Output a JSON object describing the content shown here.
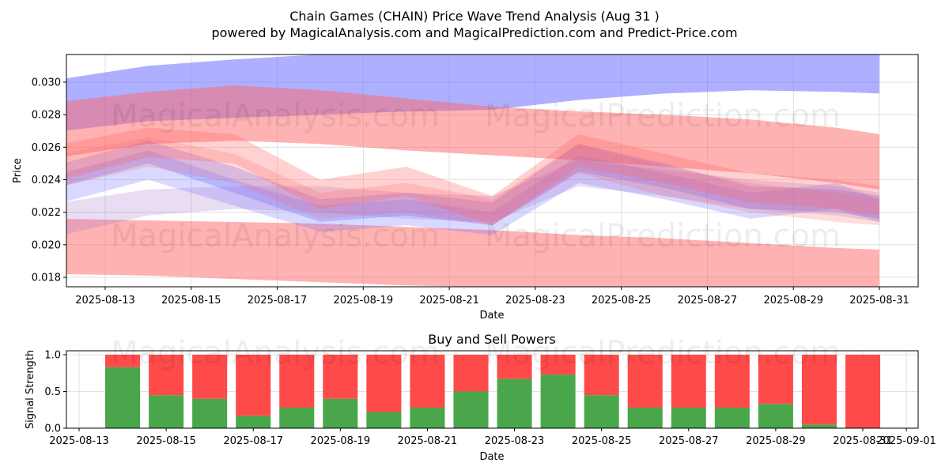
{
  "header": {
    "title": "Chain Games (CHAIN) Price Wave Trend Analysis (Aug 31 )",
    "subtitle": "powered by MagicalAnalysis.com and MagicalPrediction.com and Predict-Price.com"
  },
  "watermarks": {
    "analysis": "MagicalAnalysis.com",
    "prediction": "MagicalPrediction.com"
  },
  "colors": {
    "blue_band": "#6666ff",
    "red_band": "#ff6666",
    "buy": "#4aa64a",
    "sell": "#ff4a4a",
    "grid": "#d9d9d9"
  },
  "chart_data": [
    {
      "type": "area",
      "title": "",
      "xlabel": "Date",
      "ylabel": "Price",
      "xlim": [
        "2025-08-11",
        "2025-09-01"
      ],
      "ylim": [
        0.0174,
        0.0318
      ],
      "grid": true,
      "x_ticks": [
        "2025-08-13",
        "2025-08-15",
        "2025-08-17",
        "2025-08-19",
        "2025-08-21",
        "2025-08-23",
        "2025-08-25",
        "2025-08-27",
        "2025-08-29",
        "2025-08-31"
      ],
      "y_ticks": [
        "0.018",
        "0.020",
        "0.022",
        "0.024",
        "0.026",
        "0.028",
        "0.030"
      ],
      "bands": [
        {
          "name": "long-blue-upper",
          "color": "blue",
          "opacity": 0.52,
          "x": [
            "2025-08-12",
            "2025-08-14",
            "2025-08-16",
            "2025-08-18",
            "2025-08-20",
            "2025-08-22",
            "2025-08-24",
            "2025-08-26",
            "2025-08-28",
            "2025-08-30",
            "2025-08-31"
          ],
          "upper": [
            0.0302,
            0.031,
            0.0314,
            0.0317,
            0.0318,
            0.0318,
            0.0318,
            0.0318,
            0.0318,
            0.0318,
            0.0318
          ],
          "lower": [
            0.027,
            0.0276,
            0.0278,
            0.028,
            0.0282,
            0.0283,
            0.0289,
            0.0293,
            0.0295,
            0.0294,
            0.0293
          ]
        },
        {
          "name": "long-red-upper",
          "color": "red",
          "opacity": 0.5,
          "x": [
            "2025-08-12",
            "2025-08-14",
            "2025-08-16",
            "2025-08-18",
            "2025-08-20",
            "2025-08-22",
            "2025-08-24",
            "2025-08-26",
            "2025-08-28",
            "2025-08-30",
            "2025-08-31"
          ],
          "upper": [
            0.0288,
            0.0294,
            0.0298,
            0.0295,
            0.029,
            0.0285,
            0.0282,
            0.028,
            0.0277,
            0.0272,
            0.0268
          ],
          "lower": [
            0.0254,
            0.0262,
            0.0264,
            0.0262,
            0.0258,
            0.0255,
            0.0252,
            0.0248,
            0.0244,
            0.0238,
            0.0234
          ]
        },
        {
          "name": "long-red-lower",
          "color": "red",
          "opacity": 0.5,
          "x": [
            "2025-08-12",
            "2025-08-14",
            "2025-08-16",
            "2025-08-18",
            "2025-08-20",
            "2025-08-22",
            "2025-08-24",
            "2025-08-26",
            "2025-08-28",
            "2025-08-30",
            "2025-08-31"
          ],
          "upper": [
            0.0216,
            0.0215,
            0.0214,
            0.0213,
            0.0211,
            0.0209,
            0.0206,
            0.0204,
            0.0201,
            0.0198,
            0.0197
          ],
          "lower": [
            0.0182,
            0.0181,
            0.0179,
            0.0177,
            0.0175,
            0.0174,
            0.0174,
            0.0174,
            0.0174,
            0.0174,
            0.0174
          ]
        },
        {
          "name": "short-blue-a",
          "color": "blue",
          "opacity": 0.3,
          "x": [
            "2025-08-12",
            "2025-08-14",
            "2025-08-16",
            "2025-08-18",
            "2025-08-20",
            "2025-08-22",
            "2025-08-24",
            "2025-08-26",
            "2025-08-28",
            "2025-08-30",
            "2025-08-31"
          ],
          "upper": [
            0.025,
            0.0264,
            0.0248,
            0.0228,
            0.0232,
            0.0226,
            0.0262,
            0.025,
            0.0236,
            0.0234,
            0.023
          ],
          "lower": [
            0.0236,
            0.025,
            0.0232,
            0.0214,
            0.0218,
            0.0212,
            0.0245,
            0.0235,
            0.0222,
            0.022,
            0.0216
          ]
        },
        {
          "name": "short-blue-b",
          "color": "blue",
          "opacity": 0.25,
          "x": [
            "2025-08-12",
            "2025-08-14",
            "2025-08-16",
            "2025-08-18",
            "2025-08-20",
            "2025-08-22",
            "2025-08-24",
            "2025-08-26",
            "2025-08-28",
            "2025-08-30",
            "2025-08-31"
          ],
          "upper": [
            0.0244,
            0.0258,
            0.024,
            0.0224,
            0.0228,
            0.022,
            0.0255,
            0.0244,
            0.0232,
            0.0238,
            0.0228
          ],
          "lower": [
            0.0226,
            0.024,
            0.0224,
            0.0208,
            0.0212,
            0.0206,
            0.0238,
            0.0228,
            0.0216,
            0.0222,
            0.0214
          ]
        },
        {
          "name": "short-purple",
          "color": "purple",
          "opacity": 0.22,
          "x": [
            "2025-08-12",
            "2025-08-14",
            "2025-08-16",
            "2025-08-18",
            "2025-08-20",
            "2025-08-22",
            "2025-08-24",
            "2025-08-26",
            "2025-08-28",
            "2025-08-30",
            "2025-08-31"
          ],
          "upper": [
            0.0226,
            0.0234,
            0.0236,
            0.0236,
            0.0232,
            0.023,
            0.0252,
            0.0246,
            0.024,
            0.0236,
            0.0232
          ],
          "lower": [
            0.0206,
            0.0218,
            0.0222,
            0.022,
            0.0216,
            0.0214,
            0.0236,
            0.023,
            0.0222,
            0.0218,
            0.0214
          ]
        },
        {
          "name": "short-red-a",
          "color": "red",
          "opacity": 0.3,
          "x": [
            "2025-08-12",
            "2025-08-14",
            "2025-08-16",
            "2025-08-18",
            "2025-08-20",
            "2025-08-22",
            "2025-08-24",
            "2025-08-26",
            "2025-08-28",
            "2025-08-30",
            "2025-08-31"
          ],
          "upper": [
            0.0262,
            0.0272,
            0.0268,
            0.024,
            0.0248,
            0.023,
            0.0268,
            0.0256,
            0.0244,
            0.024,
            0.0236
          ],
          "lower": [
            0.024,
            0.0254,
            0.025,
            0.0222,
            0.023,
            0.0212,
            0.0248,
            0.0238,
            0.0226,
            0.0222,
            0.0218
          ]
        },
        {
          "name": "short-red-b",
          "color": "red",
          "opacity": 0.22,
          "x": [
            "2025-08-12",
            "2025-08-14",
            "2025-08-16",
            "2025-08-18",
            "2025-08-20",
            "2025-08-22",
            "2025-08-24",
            "2025-08-26",
            "2025-08-28",
            "2025-08-30",
            "2025-08-31"
          ],
          "upper": [
            0.0256,
            0.0266,
            0.0256,
            0.0232,
            0.0238,
            0.0228,
            0.0262,
            0.0248,
            0.0238,
            0.0232,
            0.0228
          ],
          "lower": [
            0.0236,
            0.0248,
            0.0238,
            0.0216,
            0.022,
            0.0212,
            0.0244,
            0.023,
            0.022,
            0.0214,
            0.0212
          ]
        }
      ]
    },
    {
      "type": "bar",
      "stacked": true,
      "title": "Buy and Sell Powers",
      "xlabel": "Date",
      "ylabel": "Signal Strength",
      "xlim": [
        "2025-08-12",
        "2025-09-01"
      ],
      "ylim": [
        0,
        1.05
      ],
      "y_ticks": [
        "0.0",
        "0.5",
        "1.0"
      ],
      "x_ticks": [
        "2025-08-13",
        "2025-08-15",
        "2025-08-17",
        "2025-08-19",
        "2025-08-21",
        "2025-08-23",
        "2025-08-25",
        "2025-08-27",
        "2025-08-29",
        "2025-08-31",
        "2025-09-01"
      ],
      "categories": [
        "2025-08-14",
        "2025-08-15",
        "2025-08-16",
        "2025-08-17",
        "2025-08-18",
        "2025-08-19",
        "2025-08-20",
        "2025-08-21",
        "2025-08-22",
        "2025-08-23",
        "2025-08-24",
        "2025-08-25",
        "2025-08-26",
        "2025-08-27",
        "2025-08-28",
        "2025-08-29",
        "2025-08-30",
        "2025-08-31"
      ],
      "series": [
        {
          "name": "Buy",
          "values": [
            0.83,
            0.45,
            0.4,
            0.17,
            0.28,
            0.4,
            0.22,
            0.28,
            0.5,
            0.67,
            0.73,
            0.45,
            0.28,
            0.28,
            0.28,
            0.33,
            0.05,
            0.0
          ]
        },
        {
          "name": "Sell",
          "values": [
            0.17,
            0.55,
            0.6,
            0.83,
            0.72,
            0.6,
            0.78,
            0.72,
            0.5,
            0.33,
            0.27,
            0.55,
            0.72,
            0.72,
            0.72,
            0.67,
            0.95,
            1.0
          ]
        }
      ]
    }
  ]
}
